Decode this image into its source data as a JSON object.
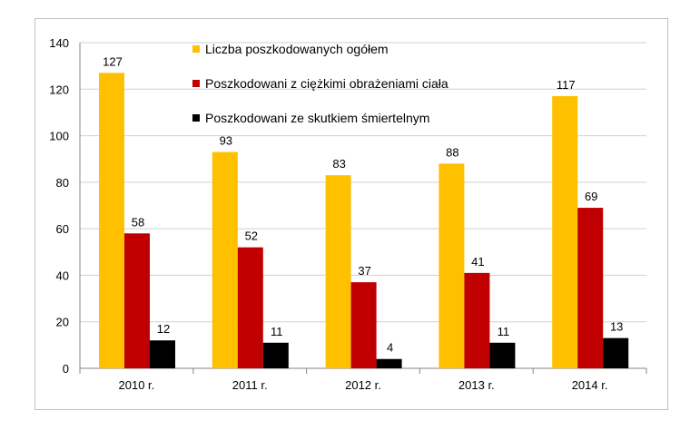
{
  "chart_data": {
    "type": "bar",
    "categories": [
      "2010 r.",
      "2011 r.",
      "2012 r.",
      "2013 r.",
      "2014 r."
    ],
    "series": [
      {
        "name": "Liczba poszkodowanych ogółem",
        "values": [
          127,
          93,
          83,
          88,
          117
        ],
        "color": "#FFC000"
      },
      {
        "name": "Poszkodowani z ciężkimi obrażeniami ciała",
        "values": [
          58,
          52,
          37,
          41,
          69
        ],
        "color": "#C00000"
      },
      {
        "name": "Poszkodowani ze skutkiem śmiertelnym",
        "values": [
          12,
          11,
          4,
          11,
          13
        ],
        "color": "#000000"
      }
    ],
    "yticks": [
      0,
      20,
      40,
      60,
      80,
      100,
      120,
      140
    ],
    "ylim": [
      0,
      140
    ],
    "grid": true,
    "legend": "top-center",
    "data_labels": true
  }
}
